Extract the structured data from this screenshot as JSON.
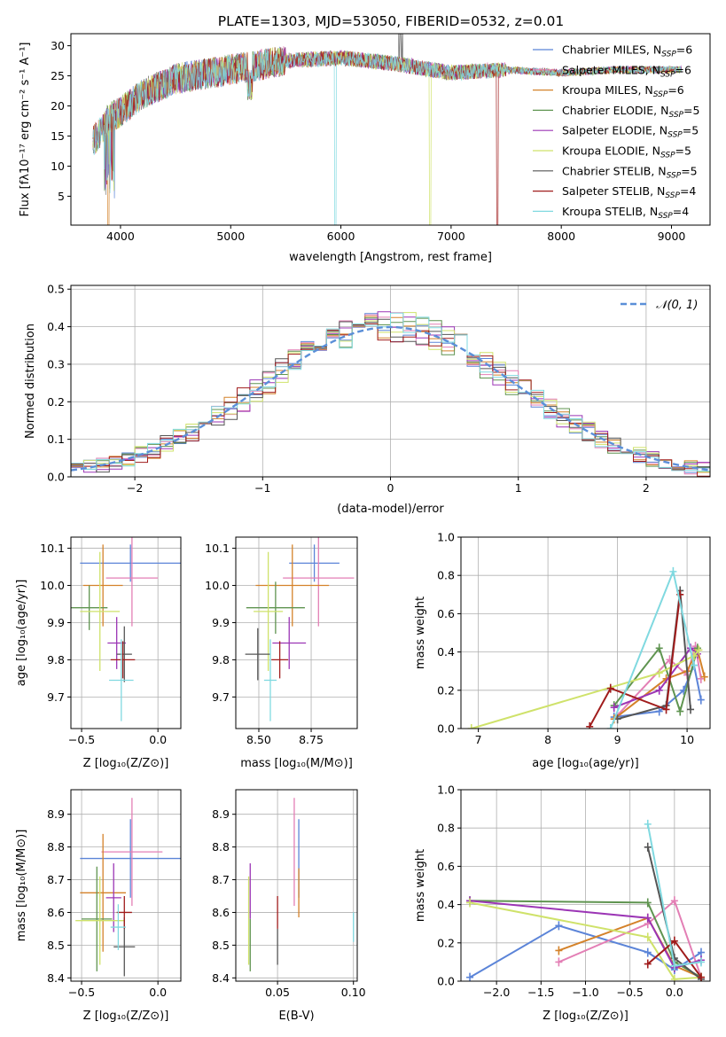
{
  "figure_title": "PLATE=1303, MJD=53050, FIBERID=0532, z=0.01",
  "colors": {
    "Chabrier MILES": "#5b84d8",
    "Salpeter MILES": "#e37fb5",
    "Kroupa MILES": "#d4822a",
    "Chabrier ELODIE": "#5f9450",
    "Salpeter ELODIE": "#9b35b5",
    "Kroupa ELODIE": "#cfe26a",
    "Chabrier STELIB": "#555555",
    "Salpeter STELIB": "#a01c1c",
    "Kroupa STELIB": "#80d9e0",
    "gaussian": "#5b8fd8"
  },
  "chart_data": [
    {
      "type": "line",
      "xlabel": "wavelength [Angstrom, rest frame]",
      "ylabel": "Flux [fλ10⁻¹⁷ erg cm⁻² s⁻¹ A⁻¹]",
      "xlim": [
        3550,
        9350
      ],
      "ylim": [
        0.2,
        32
      ],
      "xticks": [
        4000,
        5000,
        6000,
        7000,
        8000,
        9000
      ],
      "yticks": [
        5,
        10,
        15,
        20,
        25,
        30
      ],
      "grid": false,
      "legend_loc": "upper right",
      "continuum": [
        {
          "x": 3750,
          "y": 14
        },
        {
          "x": 3900,
          "y": 18
        },
        {
          "x": 4000,
          "y": 19
        },
        {
          "x": 4200,
          "y": 22
        },
        {
          "x": 4500,
          "y": 24.5
        },
        {
          "x": 5000,
          "y": 26
        },
        {
          "x": 5500,
          "y": 27.5
        },
        {
          "x": 6000,
          "y": 28
        },
        {
          "x": 6500,
          "y": 27
        },
        {
          "x": 7000,
          "y": 25.5
        },
        {
          "x": 7500,
          "y": 26
        },
        {
          "x": 8000,
          "y": 25.5
        },
        {
          "x": 8500,
          "y": 26
        },
        {
          "x": 9090,
          "y": 26
        }
      ],
      "series": [
        {
          "name": "Chabrier MILES, N_SSP=6",
          "legend": [
            "Chabrier MILES, N",
            "SSP",
            "=6"
          ]
        },
        {
          "name": "Salpeter MILES, N_SSP=6",
          "legend": [
            "Salpeter MILES, N",
            "SSP",
            "=6"
          ]
        },
        {
          "name": "Kroupa MILES, N_SSP=6",
          "legend": [
            "Kroupa MILES, N",
            "SSP",
            "=6"
          ]
        },
        {
          "name": "Chabrier ELODIE, N_SSP=5",
          "legend": [
            "Chabrier ELODIE, N",
            "SSP",
            "=5"
          ]
        },
        {
          "name": "Salpeter ELODIE, N_SSP=5",
          "legend": [
            "Salpeter ELODIE, N",
            "SSP",
            "=5"
          ]
        },
        {
          "name": "Kroupa ELODIE, N_SSP=5",
          "legend": [
            "Kroupa ELODIE, N",
            "SSP",
            "=5"
          ]
        },
        {
          "name": "Chabrier STELIB, N_SSP=5",
          "legend": [
            "Chabrier STELIB, N",
            "SSP",
            "=5"
          ]
        },
        {
          "name": "Salpeter STELIB, N_SSP=4",
          "legend": [
            "Salpeter STELIB, N",
            "SSP",
            "=4"
          ]
        },
        {
          "name": "Kroupa STELIB, N_SSP=4",
          "legend": [
            "Kroupa STELIB, N",
            "SSP",
            "=4"
          ]
        }
      ]
    },
    {
      "type": "area",
      "xlabel": "(data-model)/error",
      "ylabel": "Normed distribution",
      "xlim": [
        -2.5,
        2.5
      ],
      "ylim": [
        0,
        0.51
      ],
      "xticks": [
        -2,
        -1,
        0,
        1,
        2
      ],
      "xticklabels": [
        "−2",
        "−1",
        "0",
        "1",
        "2"
      ],
      "yticks": [
        0.0,
        0.1,
        0.2,
        0.3,
        0.4,
        0.5
      ],
      "yticklabels": [
        "0.0",
        "0.1",
        "0.2",
        "0.3",
        "0.4",
        "0.5"
      ],
      "grid": true,
      "legend_loc": "upper right",
      "legend": "𝒩(0, 1)",
      "bin_width": 0.1
    },
    {
      "type": "scatter",
      "xlabel": "Z [log₁₀(Z/Z⊙)]",
      "ylabel": "age  [log₁₀(age/yr)]",
      "xlim": [
        -0.57,
        0.15
      ],
      "ylim": [
        9.615,
        10.13
      ],
      "xticks": [
        -0.5,
        0.0
      ],
      "xticklabels": [
        "−0.5",
        "0.0"
      ],
      "yticks": [
        9.7,
        9.8,
        9.9,
        10.0,
        10.1
      ],
      "yticklabels": [
        "9.7",
        "9.8",
        "9.9",
        "10.0",
        "10.1"
      ],
      "grid": true,
      "points": [
        {
          "series": "Chabrier MILES",
          "x": -0.18,
          "xerr": 0.33,
          "y": 10.06,
          "yerr": 0.05
        },
        {
          "series": "Salpeter MILES",
          "x": -0.17,
          "xerr": 0.17,
          "y": 10.02,
          "yerr": 0.13
        },
        {
          "series": "Kroupa MILES",
          "x": -0.36,
          "xerr": 0.13,
          "y": 10.0,
          "yerr": 0.11
        },
        {
          "series": "Chabrier ELODIE",
          "x": -0.45,
          "xerr": 0.12,
          "y": 9.94,
          "yerr": 0.06
        },
        {
          "series": "Salpeter ELODIE",
          "x": -0.27,
          "xerr": 0.06,
          "y": 9.845,
          "yerr": 0.07
        },
        {
          "series": "Kroupa ELODIE",
          "x": -0.38,
          "xerr": 0.13,
          "y": 9.93,
          "yerr": 0.16
        },
        {
          "series": "Chabrier STELIB",
          "x": -0.22,
          "xerr": 0.05,
          "y": 9.815,
          "yerr": 0.075
        },
        {
          "series": "Salpeter STELIB",
          "x": -0.23,
          "xerr": 0.08,
          "y": 9.8,
          "yerr": 0.05
        },
        {
          "series": "Kroupa STELIB",
          "x": -0.24,
          "xerr": 0.08,
          "y": 9.745,
          "yerr": 0.11
        }
      ]
    },
    {
      "type": "scatter",
      "xlabel": "mass [log₁₀(M/M⊙)]",
      "ylabel": "",
      "xlim": [
        8.39,
        8.97
      ],
      "ylim": [
        9.615,
        10.13
      ],
      "xticks": [
        8.5,
        8.75
      ],
      "xticklabels": [
        "8.50",
        "8.75"
      ],
      "yticks": [
        9.7,
        9.8,
        9.9,
        10.0,
        10.1
      ],
      "yticklabels": [
        "9.7",
        "9.8",
        "9.9",
        "10.0",
        "10.1"
      ],
      "grid": true,
      "points": [
        {
          "series": "Chabrier MILES",
          "x": 8.765,
          "xerr": 0.12,
          "y": 10.06,
          "yerr": 0.05
        },
        {
          "series": "Salpeter MILES",
          "x": 8.785,
          "xerr": 0.17,
          "y": 10.02,
          "yerr": 0.13
        },
        {
          "series": "Kroupa MILES",
          "x": 8.66,
          "xerr": 0.175,
          "y": 10.0,
          "yerr": 0.11
        },
        {
          "series": "Chabrier ELODIE",
          "x": 8.58,
          "xerr": 0.14,
          "y": 9.94,
          "yerr": 0.07
        },
        {
          "series": "Salpeter ELODIE",
          "x": 8.645,
          "xerr": 0.08,
          "y": 9.845,
          "yerr": 0.07
        },
        {
          "series": "Kroupa ELODIE",
          "x": 8.545,
          "xerr": 0.07,
          "y": 9.93,
          "yerr": 0.16
        },
        {
          "series": "Chabrier STELIB",
          "x": 8.495,
          "xerr": 0.06,
          "y": 9.815,
          "yerr": 0.07
        },
        {
          "series": "Salpeter STELIB",
          "x": 8.6,
          "xerr": 0.04,
          "y": 9.8,
          "yerr": 0.05
        },
        {
          "series": "Kroupa STELIB",
          "x": 8.555,
          "xerr": 0.03,
          "y": 9.745,
          "yerr": 0.11
        }
      ]
    },
    {
      "type": "line",
      "xlabel": "age  [log₁₀(age/yr)]",
      "ylabel": "mass weight",
      "xlim": [
        6.75,
        10.33
      ],
      "ylim": [
        0,
        1.0
      ],
      "xticks": [
        7,
        8,
        9,
        10
      ],
      "yticks": [
        0.0,
        0.2,
        0.4,
        0.6,
        0.8,
        1.0
      ],
      "yticklabels": [
        "0.0",
        "0.2",
        "0.4",
        "0.6",
        "0.8",
        "1.0"
      ],
      "grid": true,
      "series": [
        {
          "name": "Chabrier MILES",
          "points": [
            [
              8.95,
              0.06
            ],
            [
              9.6,
              0.09
            ],
            [
              9.95,
              0.2
            ],
            [
              10.1,
              0.33
            ],
            [
              10.2,
              0.15
            ]
          ]
        },
        {
          "name": "Salpeter MILES",
          "points": [
            [
              9.0,
              0.07
            ],
            [
              9.75,
              0.36
            ],
            [
              10.0,
              0.28
            ],
            [
              10.12,
              0.43
            ],
            [
              10.2,
              0.26
            ]
          ]
        },
        {
          "name": "Kroupa MILES",
          "points": [
            [
              8.95,
              0.05
            ],
            [
              9.7,
              0.26
            ],
            [
              10.0,
              0.3
            ],
            [
              10.15,
              0.41
            ],
            [
              10.25,
              0.27
            ]
          ]
        },
        {
          "name": "Chabrier ELODIE",
          "points": [
            [
              8.95,
              0.12
            ],
            [
              9.6,
              0.42
            ],
            [
              9.9,
              0.09
            ],
            [
              10.15,
              0.42
            ]
          ]
        },
        {
          "name": "Salpeter ELODIE",
          "points": [
            [
              8.95,
              0.11
            ],
            [
              9.6,
              0.2
            ],
            [
              10.05,
              0.42
            ],
            [
              10.15,
              0.39
            ]
          ]
        },
        {
          "name": "Kroupa ELODIE",
          "points": [
            [
              6.9,
              0.0
            ],
            [
              9.6,
              0.29
            ],
            [
              10.1,
              0.38
            ],
            [
              10.17,
              0.41
            ]
          ]
        },
        {
          "name": "Chabrier STELIB",
          "points": [
            [
              9.0,
              0.05
            ],
            [
              9.7,
              0.12
            ],
            [
              9.9,
              0.72
            ],
            [
              10.05,
              0.1
            ]
          ]
        },
        {
          "name": "Salpeter STELIB",
          "points": [
            [
              8.6,
              0.01
            ],
            [
              8.9,
              0.21
            ],
            [
              9.7,
              0.1
            ],
            [
              9.9,
              0.7
            ]
          ]
        },
        {
          "name": "Kroupa STELIB",
          "points": [
            [
              8.9,
              0.0
            ],
            [
              9.8,
              0.82
            ],
            [
              10.1,
              0.33
            ]
          ]
        }
      ]
    },
    {
      "type": "scatter",
      "xlabel": "Z [log₁₀(Z/Z⊙)]",
      "ylabel": "mass [log₁₀(M/M⊙)]",
      "xlim": [
        -0.57,
        0.15
      ],
      "ylim": [
        8.39,
        8.975
      ],
      "xticks": [
        -0.5,
        0.0
      ],
      "xticklabels": [
        "−0.5",
        "0.0"
      ],
      "yticks": [
        8.4,
        8.5,
        8.6,
        8.7,
        8.8,
        8.9
      ],
      "yticklabels": [
        "8.4",
        "8.5",
        "8.6",
        "8.7",
        "8.8",
        "8.9"
      ],
      "grid": true,
      "points": [
        {
          "series": "Chabrier MILES",
          "x": -0.18,
          "xerr": 0.33,
          "y": 8.765,
          "yerr": 0.12
        },
        {
          "series": "Salpeter MILES",
          "x": -0.17,
          "xerr": 0.2,
          "y": 8.785,
          "yerr": 0.165
        },
        {
          "series": "Kroupa MILES",
          "x": -0.36,
          "xerr": 0.15,
          "y": 8.66,
          "yerr": 0.18
        },
        {
          "series": "Chabrier ELODIE",
          "x": -0.4,
          "xerr": 0.1,
          "y": 8.58,
          "yerr": 0.16
        },
        {
          "series": "Salpeter ELODIE",
          "x": -0.29,
          "xerr": 0.05,
          "y": 8.645,
          "yerr": 0.105
        },
        {
          "series": "Kroupa ELODIE",
          "x": -0.38,
          "xerr": 0.16,
          "y": 8.575,
          "yerr": 0.135
        },
        {
          "series": "Chabrier STELIB",
          "x": -0.22,
          "xerr": 0.07,
          "y": 8.495,
          "yerr": 0.09
        },
        {
          "series": "Salpeter STELIB",
          "x": -0.22,
          "xerr": 0.05,
          "y": 8.6,
          "yerr": 0.05
        },
        {
          "series": "Kroupa STELIB",
          "x": -0.26,
          "xerr": 0.05,
          "y": 8.555,
          "yerr": 0.07
        }
      ]
    },
    {
      "type": "scatter",
      "xlabel": "E(B-V)",
      "ylabel": "",
      "xlim": [
        0.0225,
        0.1025
      ],
      "ylim": [
        8.39,
        8.975
      ],
      "xticks": [
        0.05,
        0.1
      ],
      "xticklabels": [
        "0.05",
        "0.10"
      ],
      "yticks": [
        8.4,
        8.5,
        8.6,
        8.7,
        8.8,
        8.9
      ],
      "yticklabels": [
        "8.4",
        "8.5",
        "8.6",
        "8.7",
        "8.8",
        "8.9"
      ],
      "grid": true,
      "points": [
        {
          "series": "Chabrier MILES",
          "x": 0.064,
          "xerr": 0,
          "y": 8.765,
          "yerr": 0.12
        },
        {
          "series": "Salpeter MILES",
          "x": 0.061,
          "xerr": 0,
          "y": 8.785,
          "yerr": 0.165
        },
        {
          "series": "Kroupa MILES",
          "x": 0.064,
          "xerr": 0,
          "y": 8.66,
          "yerr": 0.075
        },
        {
          "series": "Chabrier ELODIE",
          "x": 0.032,
          "xerr": 0,
          "y": 8.5,
          "yerr": 0.08
        },
        {
          "series": "Salpeter ELODIE",
          "x": 0.032,
          "xerr": 0,
          "y": 8.665,
          "yerr": 0.085
        },
        {
          "series": "Kroupa ELODIE",
          "x": 0.031,
          "xerr": 0,
          "y": 8.575,
          "yerr": 0.135
        },
        {
          "series": "Chabrier STELIB",
          "x": 0.05,
          "xerr": 0,
          "y": 8.495,
          "yerr": 0.055
        },
        {
          "series": "Salpeter STELIB",
          "x": 0.05,
          "xerr": 0,
          "y": 8.6,
          "yerr": 0.05
        },
        {
          "series": "Kroupa STELIB",
          "x": 0.1,
          "xerr": 0,
          "y": 8.555,
          "yerr": 0.045
        }
      ]
    },
    {
      "type": "line",
      "xlabel": "Z [log₁₀(Z/Z⊙)]",
      "ylabel": "mass weight",
      "xlim": [
        -2.4,
        0.4
      ],
      "ylim": [
        0,
        1.0
      ],
      "xticks": [
        -2.0,
        -1.5,
        -1.0,
        -0.5,
        0.0
      ],
      "xticklabels": [
        "−2.0",
        "−1.5",
        "−1.0",
        "−0.5",
        "0.0"
      ],
      "yticks": [
        0.0,
        0.2,
        0.4,
        0.6,
        0.8,
        1.0
      ],
      "yticklabels": [
        "0.0",
        "0.2",
        "0.4",
        "0.6",
        "0.8",
        "1.0"
      ],
      "grid": true,
      "series": [
        {
          "name": "Chabrier MILES",
          "points": [
            [
              -2.3,
              0.02
            ],
            [
              -1.3,
              0.29
            ],
            [
              -0.3,
              0.15
            ],
            [
              0.0,
              0.06
            ],
            [
              0.3,
              0.15
            ]
          ]
        },
        {
          "name": "Salpeter MILES",
          "points": [
            [
              -1.3,
              0.1
            ],
            [
              -0.3,
              0.3
            ],
            [
              0.0,
              0.42
            ],
            [
              0.3,
              0.02
            ]
          ]
        },
        {
          "name": "Kroupa MILES",
          "points": [
            [
              -1.3,
              0.16
            ],
            [
              -0.3,
              0.33
            ],
            [
              0.0,
              0.08
            ],
            [
              0.3,
              0.02
            ]
          ]
        },
        {
          "name": "Chabrier ELODIE",
          "points": [
            [
              -2.3,
              0.42
            ],
            [
              -0.3,
              0.41
            ],
            [
              0.0,
              0.1
            ],
            [
              0.3,
              0.02
            ]
          ]
        },
        {
          "name": "Salpeter ELODIE",
          "points": [
            [
              -2.3,
              0.42
            ],
            [
              -0.3,
              0.33
            ],
            [
              0.0,
              0.07
            ],
            [
              0.3,
              0.11
            ]
          ]
        },
        {
          "name": "Kroupa ELODIE",
          "points": [
            [
              -2.3,
              0.41
            ],
            [
              -0.3,
              0.23
            ],
            [
              0.0,
              0.01
            ],
            [
              0.3,
              0.02
            ]
          ]
        },
        {
          "name": "Chabrier STELIB",
          "points": [
            [
              -0.3,
              0.7
            ],
            [
              0.0,
              0.12
            ],
            [
              0.3,
              0.01
            ]
          ]
        },
        {
          "name": "Salpeter STELIB",
          "points": [
            [
              -0.3,
              0.09
            ],
            [
              0.0,
              0.21
            ],
            [
              0.3,
              0.02
            ]
          ]
        },
        {
          "name": "Kroupa STELIB",
          "points": [
            [
              -0.3,
              0.82
            ],
            [
              0.0,
              0.08
            ],
            [
              0.3,
              0.1
            ]
          ]
        }
      ]
    }
  ]
}
